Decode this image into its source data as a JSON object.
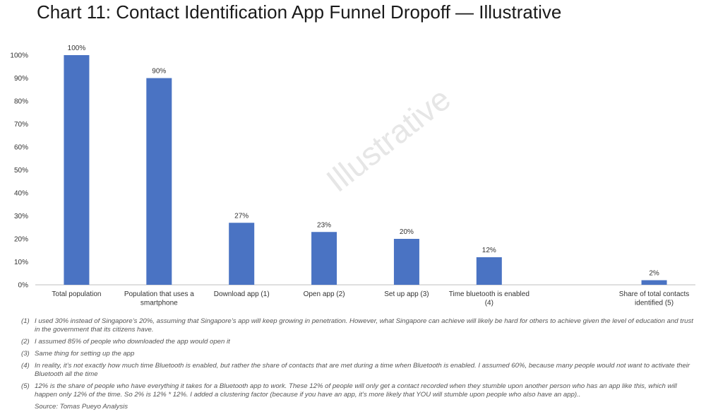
{
  "title": "Chart 11: Contact Identification App Funnel Dropoff — Illustrative",
  "watermark": "Illustrative",
  "colors": {
    "bar": "#4a73c3",
    "axis": "#bfbfbf",
    "text": "#333333",
    "watermark": "#e6e6e6"
  },
  "chart_data": {
    "type": "bar",
    "categories": [
      "Total population",
      "Population that uses a smartphone",
      "Download app (1)",
      "Open app (2)",
      "Set up app (3)",
      "Time bluetooth is enabled (4)",
      "",
      "Share of total contacts identified (5)"
    ],
    "category_lines": [
      [
        "Total population"
      ],
      [
        "Population that uses a",
        "smartphone"
      ],
      [
        "Download app (1)"
      ],
      [
        "Open app (2)"
      ],
      [
        "Set up app (3)"
      ],
      [
        "Time bluetooth is enabled",
        "(4)"
      ],
      [],
      [
        "Share of total contacts",
        "identified (5)"
      ]
    ],
    "values": [
      100,
      90,
      27,
      23,
      20,
      12,
      null,
      2
    ],
    "data_labels": [
      "100%",
      "90%",
      "27%",
      "23%",
      "20%",
      "12%",
      "",
      "2%"
    ],
    "ylim": [
      0,
      100
    ],
    "yticks": [
      "0%",
      "10%",
      "20%",
      "30%",
      "40%",
      "50%",
      "60%",
      "70%",
      "80%",
      "90%",
      "100%"
    ],
    "xlabel": "",
    "ylabel": "",
    "grid": false,
    "legend": "none"
  },
  "footnotes": [
    {
      "num": "(1)",
      "text": "I used 30% instead of Singapore’s 20%, assuming that Singapore’s app will keep growing in penetration. However, what Singapore can achieve will likely be hard for others to achieve given the level of education and trust in the government that its citizens have."
    },
    {
      "num": "(2)",
      "text": "I assumed 85% of people who downloaded the app would open it"
    },
    {
      "num": "(3)",
      "text": "Same thing for setting up the app"
    },
    {
      "num": "(4)",
      "text": "In reality, it’s not exactly how much time Bluetooth is enabled, but rather the share of contacts that are met during a time when Bluetooth is enabled. I assumed 60%, because many people would not want to activate their Bluetooth all the time"
    },
    {
      "num": "(5)",
      "text": "12% is the share of people who have everything it takes for a Bluetooth app to work. These 12% of people will only get a contact recorded when they stumble upon another person who has an app like this, which will happen only 12% of the time. So 2% is 12% * 12%. I added a clustering factor (because if you have an app, it’s more likely that YOU will stumble upon people who also have an app).."
    }
  ],
  "source": "Source: Tomas Pueyo Analysis"
}
